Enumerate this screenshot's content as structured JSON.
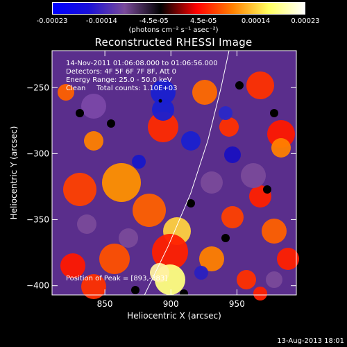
{
  "colorbar": {
    "gradient": [
      "#0000ff",
      "#1a10d8",
      "#7a4a9a",
      "#000000",
      "#ff0000",
      "#ff8000",
      "#ffff60",
      "#ffffff"
    ],
    "ticks": [
      "-0.00023",
      "-0.00014",
      "-4.5e-05",
      "4.5e-05",
      "0.00014",
      "0.00023"
    ],
    "tick_values": [
      -0.00023,
      -0.00014,
      -4.5e-05,
      4.5e-05,
      0.00014,
      0.00023
    ],
    "range": [
      -0.00023,
      0.00023
    ],
    "units": "(photons cm⁻² s⁻¹ asec⁻²)"
  },
  "chart_data": {
    "type": "heatmap",
    "title": "Reconstructed RHESSI Image",
    "xlabel": "Heliocentric X (arcsec)",
    "ylabel": "Heliocentric Y (arcsec)",
    "xlim": [
      810,
      995
    ],
    "ylim": [
      -407,
      -222
    ],
    "xticks": [
      850,
      900,
      950
    ],
    "yticks": [
      -250,
      -300,
      -350,
      -400
    ],
    "info_lines": [
      "14-Nov-2011 01:06:08.000 to 01:06:56.000",
      "Detectors: 4F 5F 6F 7F 8F, Att 0",
      "Energy Range: 25.0 - 50.0 keV",
      "Clean     Total counts: 1.10E+03"
    ],
    "peak_label": "Position of Peak = [893,-383]",
    "peak": [
      893,
      -383
    ],
    "min_marker": [
      892,
      -260
    ],
    "limb_curve": [
      [
        880,
        -407
      ],
      [
        898,
        -370
      ],
      [
        915,
        -330
      ],
      [
        928,
        -290
      ],
      [
        938,
        -250
      ],
      [
        944,
        -222
      ]
    ]
  },
  "footer": "13-Aug-2013 18:01"
}
